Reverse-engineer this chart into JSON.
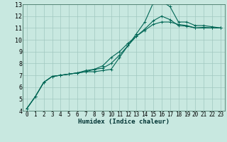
{
  "title": "",
  "xlabel": "Humidex (Indice chaleur)",
  "xlim": [
    -0.5,
    23.5
  ],
  "ylim": [
    4,
    13
  ],
  "xticks": [
    0,
    1,
    2,
    3,
    4,
    5,
    6,
    7,
    8,
    9,
    10,
    11,
    12,
    13,
    14,
    15,
    16,
    17,
    18,
    19,
    20,
    21,
    22,
    23
  ],
  "yticks": [
    4,
    5,
    6,
    7,
    8,
    9,
    10,
    11,
    12,
    13
  ],
  "bg_color": "#c8e8e0",
  "line_color": "#006655",
  "grid_color": "#a0c8c0",
  "line1_x": [
    0,
    1,
    2,
    3,
    4,
    5,
    6,
    7,
    8,
    9,
    10,
    11,
    12,
    13,
    14,
    15,
    16,
    17,
    18,
    19,
    20,
    21,
    22,
    23
  ],
  "line1_y": [
    4.2,
    5.2,
    6.4,
    6.9,
    7.0,
    7.1,
    7.2,
    7.3,
    7.3,
    7.4,
    7.5,
    8.5,
    9.5,
    10.5,
    11.5,
    13.1,
    13.25,
    12.8,
    11.5,
    11.5,
    11.2,
    11.2,
    11.1,
    11.0
  ],
  "line2_x": [
    0,
    1,
    2,
    3,
    4,
    5,
    6,
    7,
    8,
    9,
    10,
    11,
    12,
    13,
    14,
    15,
    16,
    17,
    18,
    19,
    20,
    21,
    22,
    23
  ],
  "line2_y": [
    4.2,
    5.2,
    6.4,
    6.9,
    7.0,
    7.1,
    7.2,
    7.4,
    7.5,
    7.6,
    8.0,
    8.7,
    9.5,
    10.3,
    10.9,
    11.6,
    12.0,
    11.7,
    11.2,
    11.15,
    11.0,
    11.05,
    11.0,
    11.0
  ],
  "line3_x": [
    0,
    1,
    2,
    3,
    4,
    5,
    6,
    7,
    8,
    9,
    10,
    11,
    12,
    13,
    14,
    15,
    16,
    17,
    18,
    19,
    20,
    21,
    22,
    23
  ],
  "line3_y": [
    4.2,
    5.2,
    6.4,
    6.9,
    7.0,
    7.1,
    7.2,
    7.3,
    7.5,
    7.8,
    8.5,
    9.0,
    9.7,
    10.3,
    10.8,
    11.3,
    11.5,
    11.5,
    11.3,
    11.2,
    11.0,
    11.0,
    11.0,
    11.0
  ],
  "tick_fontsize": 5.5,
  "xlabel_fontsize": 6.5,
  "marker_size": 2.5,
  "line_width": 0.8
}
